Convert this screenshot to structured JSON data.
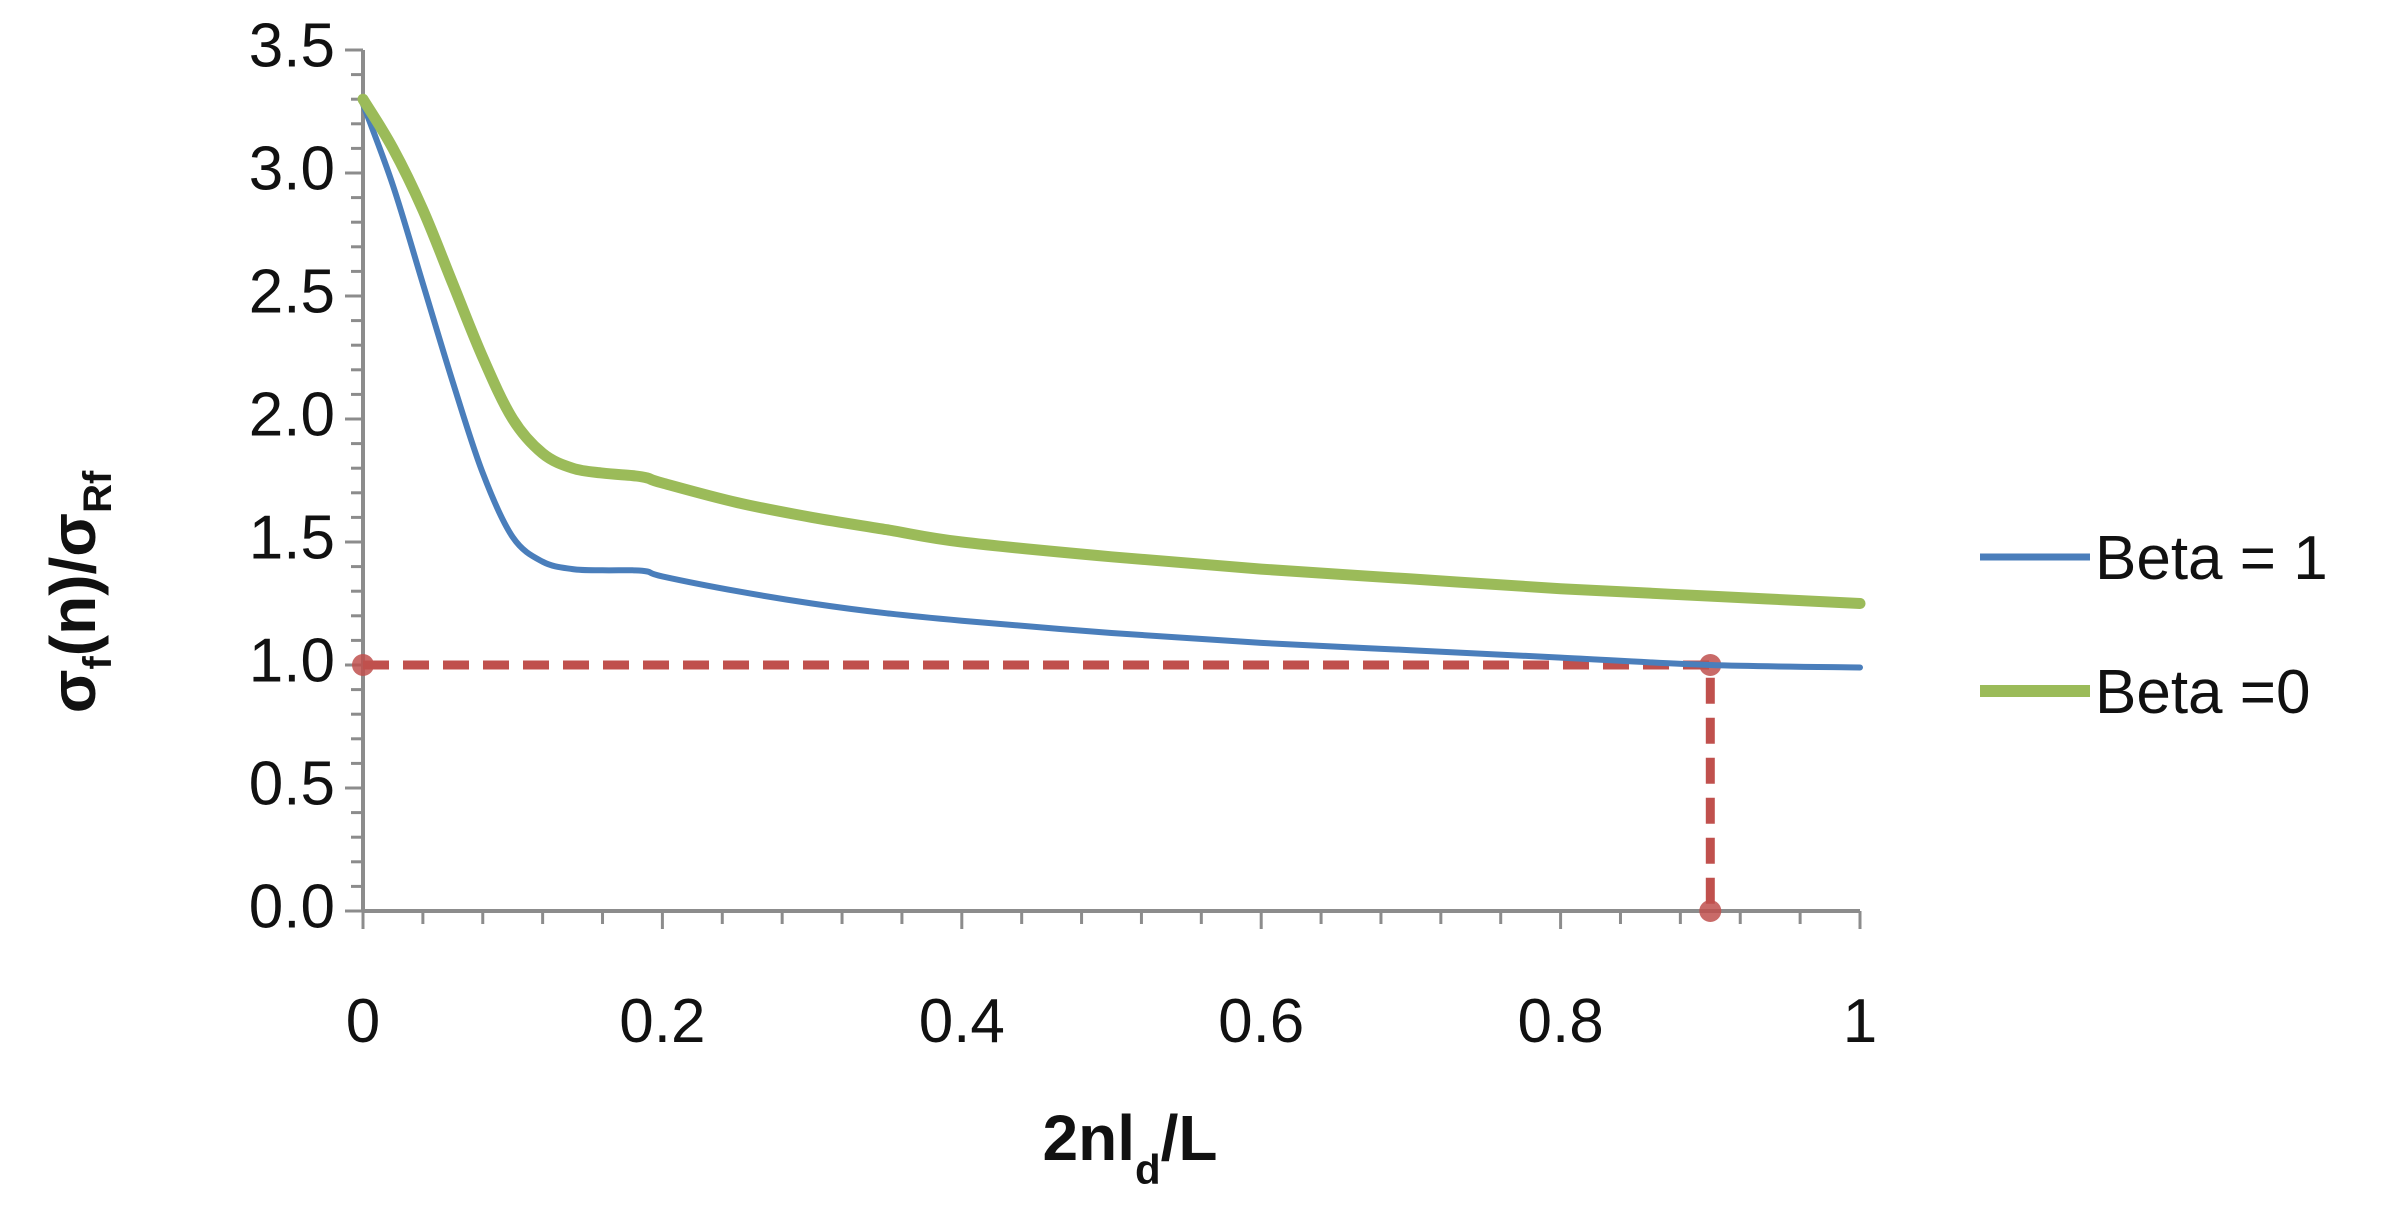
{
  "chart_data": {
    "type": "line",
    "title": "",
    "xlabel": "2nl_d/L",
    "ylabel": "σ_f(n)/σ_Rf",
    "xlim": [
      0,
      1
    ],
    "ylim": [
      0,
      3.5
    ],
    "x_ticks": [
      "0",
      "0.2",
      "0.4",
      "0.6",
      "0.8",
      "1"
    ],
    "y_ticks": [
      "0.0",
      "0.5",
      "1.0",
      "1.5",
      "2.0",
      "2.5",
      "3.0",
      "3.5"
    ],
    "grid": false,
    "legend_position": "right",
    "series": [
      {
        "name": "Beta = 1",
        "color": "#4a7ebb",
        "x": [
          0,
          0.02,
          0.04,
          0.06,
          0.08,
          0.1,
          0.12,
          0.14,
          0.16,
          0.18,
          0.19,
          0.2,
          0.25,
          0.3,
          0.35,
          0.4,
          0.5,
          0.6,
          0.7,
          0.8,
          0.9,
          1.0
        ],
        "y": [
          3.28,
          2.95,
          2.55,
          2.15,
          1.78,
          1.52,
          1.42,
          1.39,
          1.385,
          1.385,
          1.38,
          1.36,
          1.3,
          1.25,
          1.21,
          1.18,
          1.13,
          1.09,
          1.06,
          1.03,
          1.0,
          0.99
        ]
      },
      {
        "name": "Beta =0",
        "color": "#9bbb59",
        "x": [
          0,
          0.02,
          0.04,
          0.06,
          0.08,
          0.1,
          0.12,
          0.14,
          0.16,
          0.18,
          0.19,
          0.2,
          0.25,
          0.3,
          0.35,
          0.4,
          0.5,
          0.6,
          0.7,
          0.8,
          0.9,
          1.0
        ],
        "y": [
          3.3,
          3.1,
          2.85,
          2.55,
          2.25,
          2.0,
          1.86,
          1.8,
          1.78,
          1.77,
          1.76,
          1.74,
          1.66,
          1.6,
          1.55,
          1.5,
          1.44,
          1.39,
          1.35,
          1.31,
          1.28,
          1.25
        ]
      }
    ],
    "annotations": [
      {
        "kind": "dashed-guide",
        "color": "#c0504d",
        "points": [
          [
            0,
            1.0
          ],
          [
            0.9,
            1.0
          ],
          [
            0.9,
            0.0
          ]
        ]
      }
    ]
  }
}
